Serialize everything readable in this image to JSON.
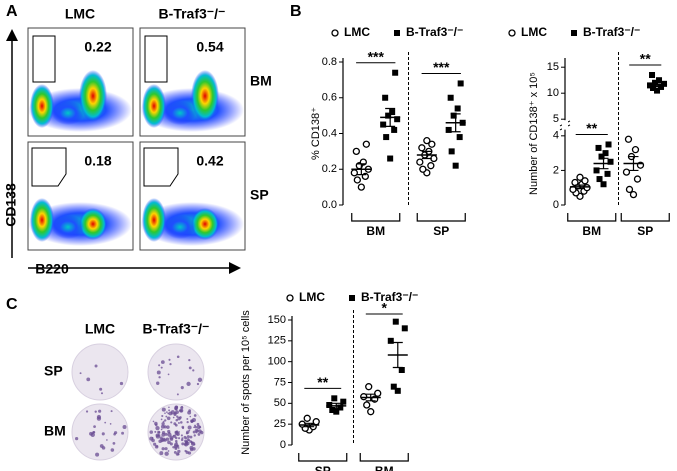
{
  "panel_labels": [
    "A",
    "B",
    "C"
  ],
  "panel_a": {
    "columns": [
      "LMC",
      "B-Traf3⁻/⁻"
    ],
    "rows": [
      "BM",
      "SP"
    ],
    "gates": [
      [
        0.22,
        0.54
      ],
      [
        0.18,
        0.42
      ]
    ],
    "y_axis": "CD138",
    "x_axis": "B220"
  },
  "panel_c": {
    "columns": [
      "LMC",
      "B-Traf3⁻/⁻"
    ],
    "rows": [
      "SP",
      "BM"
    ]
  },
  "chart_data": [
    {
      "type": "dot",
      "ylabel": "% CD138⁺",
      "categories": [
        "BM",
        "SP"
      ],
      "significance": [
        "***",
        "***"
      ],
      "ylim": [
        0,
        0.8
      ],
      "yticks": [
        {
          "value": 0,
          "label": "0.0"
        },
        0.2,
        0.4,
        0.6,
        0.8
      ],
      "series": [
        {
          "name": "LMC",
          "marker": "circle",
          "color": "#000000",
          "values": [
            [
              0.1,
              0.14,
              0.16,
              0.18,
              0.2,
              0.22,
              0.24,
              0.3,
              0.34
            ],
            [
              0.18,
              0.2,
              0.22,
              0.24,
              0.26,
              0.28,
              0.3,
              0.32,
              0.34,
              0.36
            ]
          ],
          "mean": [
            0.2,
            0.28
          ],
          "sem": [
            0.03,
            0.02
          ]
        },
        {
          "name": "B-Traf3⁻/⁻",
          "marker": "square",
          "color": "#000000",
          "values": [
            [
              0.26,
              0.38,
              0.42,
              0.45,
              0.48,
              0.5,
              0.52,
              0.6,
              0.74
            ],
            [
              0.22,
              0.3,
              0.38,
              0.42,
              0.46,
              0.5,
              0.54,
              0.6,
              0.68
            ]
          ],
          "mean": [
            0.49,
            0.46
          ],
          "sem": [
            0.05,
            0.05
          ]
        }
      ]
    },
    {
      "type": "dot",
      "ylabel": "Number of CD138⁺ x 10⁵",
      "categories": [
        "BM",
        "SP"
      ],
      "significance": [
        "**",
        "**"
      ],
      "ylim": [
        0,
        16
      ],
      "axis_break": [
        4.3,
        5
      ],
      "yticks": [
        0,
        2,
        4,
        5,
        10,
        15
      ],
      "series": [
        {
          "name": "LMC",
          "marker": "circle",
          "color": "#000000",
          "values": [
            [
              0.5,
              0.7,
              0.8,
              0.9,
              1.0,
              1.1,
              1.2,
              1.3,
              1.4,
              1.6
            ],
            [
              0.6,
              0.9,
              1.5,
              1.9,
              2.3,
              2.8,
              3.2,
              3.8
            ]
          ],
          "mean": [
            1.05,
            2.4
          ],
          "sem": [
            0.1,
            0.4
          ]
        },
        {
          "name": "B-Traf3⁻/⁻",
          "marker": "square",
          "color": "#000000",
          "values": [
            [
              1.2,
              1.5,
              1.8,
              2.0,
              2.5,
              2.8,
              3.0,
              3.3,
              3.5
            ],
            [
              10.5,
              11,
              11.2,
              11.5,
              11.8,
              12,
              12.5,
              13.5
            ]
          ],
          "mean": [
            2.4,
            11.7
          ],
          "sem": [
            0.3,
            0.4
          ]
        }
      ]
    },
    {
      "type": "dot",
      "ylabel": "Number of spots per 10⁵ cells",
      "categories": [
        "SP",
        "BM"
      ],
      "significance": [
        "**",
        "*"
      ],
      "ylim": [
        0,
        150
      ],
      "yticks": [
        0,
        25,
        50,
        75,
        100,
        125,
        150
      ],
      "series": [
        {
          "name": "LMC",
          "marker": "circle",
          "color": "#000000",
          "values": [
            [
              18,
              20,
              22,
              25,
              28,
              32
            ],
            [
              40,
              48,
              55,
              58,
              62,
              70
            ]
          ],
          "mean": [
            24,
            57
          ],
          "sem": [
            2,
            4
          ]
        },
        {
          "name": "B-Traf3⁻/⁻",
          "marker": "square",
          "color": "#000000",
          "values": [
            [
              40,
              42,
              45,
              48,
              52,
              56
            ],
            [
              65,
              70,
              90,
              125,
              140,
              148
            ]
          ],
          "mean": [
            47,
            108
          ],
          "sem": [
            3,
            15
          ]
        }
      ]
    }
  ]
}
